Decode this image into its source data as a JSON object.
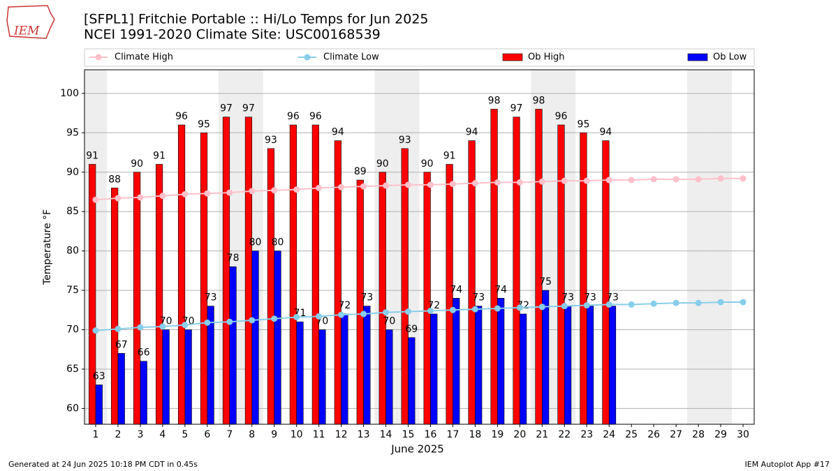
{
  "logo_text": "IEM",
  "footer_left": "Generated at 24 Jun 2025 10:18 PM CDT in 0.45s",
  "footer_right": "IEM Autoplot App #17",
  "chart_data": {
    "type": "bar",
    "title": "[SFPL1] Fritchie Portable :: Hi/Lo Temps for Jun 2025",
    "subtitle": "NCEI 1991-2020 Climate Site: USC00168539",
    "xlabel": "June 2025",
    "ylabel": "Temperature °F",
    "x": [
      1,
      2,
      3,
      4,
      5,
      6,
      7,
      8,
      9,
      10,
      11,
      12,
      13,
      14,
      15,
      16,
      17,
      18,
      19,
      20,
      21,
      22,
      23,
      24,
      25,
      26,
      27,
      28,
      29,
      30
    ],
    "xlim": [
      0.5,
      30.5
    ],
    "xticks": [
      1,
      2,
      3,
      4,
      5,
      6,
      7,
      8,
      9,
      10,
      11,
      12,
      13,
      14,
      15,
      16,
      17,
      18,
      19,
      20,
      21,
      22,
      23,
      24,
      25,
      26,
      27,
      28,
      29,
      30
    ],
    "ylim": [
      58,
      103
    ],
    "yticks": [
      60,
      65,
      70,
      75,
      80,
      85,
      90,
      95,
      100
    ],
    "grid": true,
    "shaded_x": [
      1,
      7,
      8,
      14,
      15,
      21,
      22,
      28,
      29
    ],
    "series": [
      {
        "name": "Climate High",
        "type": "line",
        "color": "#ffc0cb",
        "values": [
          86.5,
          86.7,
          86.8,
          87.0,
          87.2,
          87.3,
          87.4,
          87.6,
          87.7,
          87.8,
          88.0,
          88.1,
          88.2,
          88.3,
          88.4,
          88.4,
          88.5,
          88.6,
          88.7,
          88.7,
          88.8,
          88.9,
          88.9,
          89.0,
          89.0,
          89.1,
          89.1,
          89.1,
          89.2,
          89.2
        ]
      },
      {
        "name": "Climate Low",
        "type": "line",
        "color": "#87ceeb",
        "values": [
          69.9,
          70.1,
          70.3,
          70.4,
          70.6,
          70.9,
          71.0,
          71.2,
          71.4,
          71.6,
          71.7,
          71.9,
          72.0,
          72.2,
          72.3,
          72.4,
          72.5,
          72.6,
          72.7,
          72.8,
          72.9,
          73.0,
          73.1,
          73.2,
          73.2,
          73.3,
          73.4,
          73.4,
          73.5,
          73.5
        ]
      },
      {
        "name": "Ob High",
        "type": "bar",
        "color": "#ff0000",
        "values": [
          91,
          88,
          90,
          91,
          96,
          95,
          97,
          97,
          93,
          96,
          96,
          94,
          89,
          90,
          93,
          90,
          91,
          94,
          98,
          97,
          98,
          96,
          95,
          94,
          null,
          null,
          null,
          null,
          null,
          null
        ]
      },
      {
        "name": "Ob Low",
        "type": "bar",
        "color": "#0000ff",
        "values": [
          63,
          67,
          66,
          70,
          70,
          73,
          78,
          80,
          80,
          71,
          70,
          72,
          73,
          70,
          69,
          72,
          74,
          73,
          74,
          72,
          75,
          73,
          73,
          73,
          null,
          null,
          null,
          null,
          null,
          null
        ]
      }
    ]
  }
}
